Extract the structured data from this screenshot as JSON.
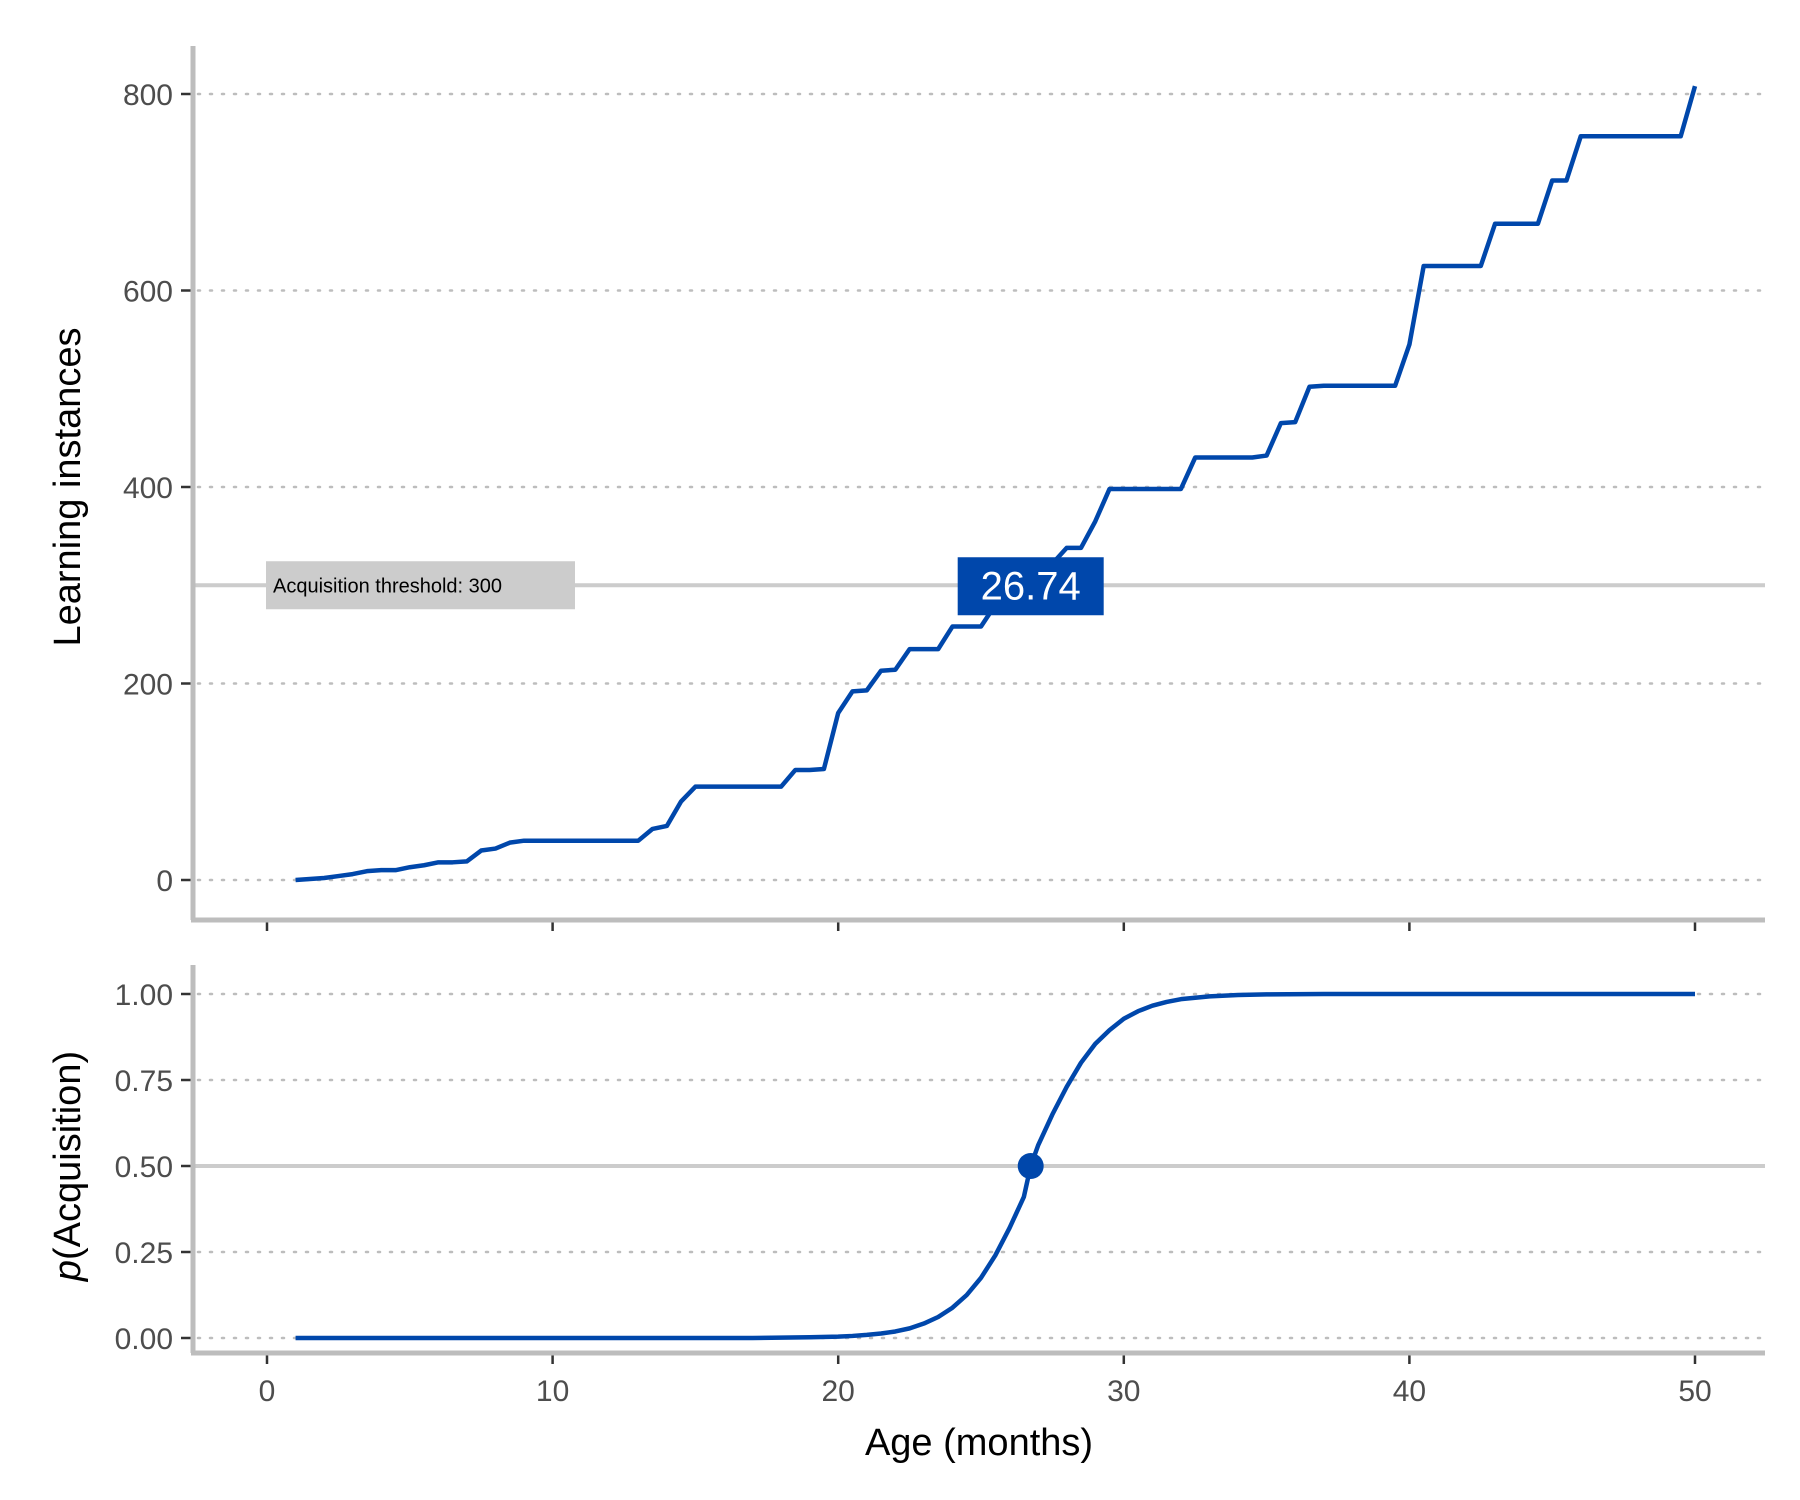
{
  "colors": {
    "line": "#0047AB",
    "axis": "#bdbdbd",
    "grid": "#bdbdbd",
    "threshold": "#cccccc",
    "threshold_label_bg": "#cccccc"
  },
  "chart_data": [
    {
      "type": "line",
      "panel": "top",
      "ylabel": "Learning instances",
      "xlim": [
        0,
        50
      ],
      "ylim": [
        0,
        800
      ],
      "yticks": [
        0,
        200,
        400,
        600,
        800
      ],
      "ytick_labels": [
        "0",
        "200",
        "400",
        "600",
        "800"
      ],
      "xticks": [
        0,
        10,
        20,
        30,
        40,
        50
      ],
      "grid": "horizontal-dotted",
      "threshold": {
        "value": 300,
        "label": "Acquisition threshold: 300"
      },
      "acquisition_label": {
        "text": "26.74",
        "x": 26.74,
        "y": 300
      },
      "series": [
        {
          "x": [
            1,
            1.5,
            2,
            2.5,
            3,
            3.5,
            4,
            4.5,
            5,
            5.5,
            6,
            6.5,
            7,
            7.5,
            8,
            8.5,
            9,
            9.5,
            10,
            10.5,
            11,
            11.5,
            12,
            12.5,
            13,
            13.5,
            14,
            14.5,
            15,
            15.5,
            16,
            16.5,
            17,
            17.5,
            18,
            18.5,
            19,
            19.5,
            20,
            20.5,
            21,
            21.5,
            22,
            22.5,
            23,
            23.5,
            24,
            24.5,
            25,
            25.5,
            26,
            26.5,
            27,
            27.5,
            28,
            28.5,
            29,
            29.5,
            30,
            30.5,
            31,
            31.5,
            32,
            32.5,
            33,
            33.5,
            34,
            34.5,
            35,
            35.5,
            36,
            36.5,
            37,
            37.5,
            38,
            38.5,
            39,
            39.5,
            40,
            40.5,
            41,
            41.5,
            42,
            42.5,
            43,
            43.5,
            44,
            44.5,
            45,
            45.5,
            46,
            46.5,
            47,
            47.5,
            48,
            48.5,
            49,
            49.5,
            50
          ],
          "y": [
            0,
            1,
            2,
            4,
            6,
            9,
            10,
            10,
            13,
            15,
            18,
            18,
            19,
            30,
            32,
            38,
            40,
            40,
            40,
            40,
            40,
            40,
            40,
            40,
            40,
            52,
            55,
            80,
            95,
            95,
            95,
            95,
            95,
            95,
            95,
            112,
            112,
            113,
            170,
            192,
            193,
            213,
            214,
            235,
            235,
            235,
            258,
            258,
            258,
            280,
            290,
            300,
            318,
            322,
            338,
            338,
            365,
            398,
            398,
            398,
            398,
            398,
            398,
            430,
            430,
            430,
            430,
            430,
            432,
            465,
            466,
            502,
            503,
            503,
            503,
            503,
            503,
            503,
            545,
            625,
            625,
            625,
            625,
            625,
            668,
            668,
            668,
            668,
            712,
            712,
            757,
            757,
            757,
            757,
            757,
            757,
            757,
            757,
            808
          ]
        }
      ]
    },
    {
      "type": "line",
      "panel": "bottom",
      "xlabel": "Age (months)",
      "ylabel_italic": "p",
      "ylabel_rest": "(Acquisition)",
      "xlim": [
        0,
        50
      ],
      "ylim": [
        0,
        1
      ],
      "yticks": [
        0,
        0.25,
        0.5,
        0.75,
        1
      ],
      "ytick_labels": [
        "0.00",
        "0.25",
        "0.50",
        "0.75",
        "1.00"
      ],
      "xticks": [
        0,
        10,
        20,
        30,
        40,
        50
      ],
      "xtick_labels": [
        "0",
        "10",
        "20",
        "30",
        "40",
        "50"
      ],
      "grid": "horizontal-dotted",
      "reference_line": 0.5,
      "point": {
        "x": 26.74,
        "y": 0.5
      },
      "series": [
        {
          "x": [
            1,
            5,
            10,
            15,
            17,
            18,
            19,
            20,
            20.5,
            21,
            21.5,
            22,
            22.5,
            23,
            23.5,
            24,
            24.5,
            25,
            25.5,
            26,
            26.5,
            26.74,
            27,
            27.5,
            28,
            28.5,
            29,
            29.5,
            30,
            30.5,
            31,
            31.5,
            32,
            33,
            34,
            35,
            37,
            40,
            45,
            50
          ],
          "y": [
            0,
            0,
            0,
            0,
            0,
            0.001,
            0.002,
            0.004,
            0.006,
            0.009,
            0.013,
            0.019,
            0.028,
            0.042,
            0.061,
            0.088,
            0.125,
            0.175,
            0.24,
            0.32,
            0.41,
            0.5,
            0.56,
            0.65,
            0.73,
            0.8,
            0.855,
            0.895,
            0.928,
            0.95,
            0.966,
            0.977,
            0.985,
            0.993,
            0.997,
            0.999,
            1,
            1,
            1,
            1
          ]
        }
      ]
    }
  ]
}
